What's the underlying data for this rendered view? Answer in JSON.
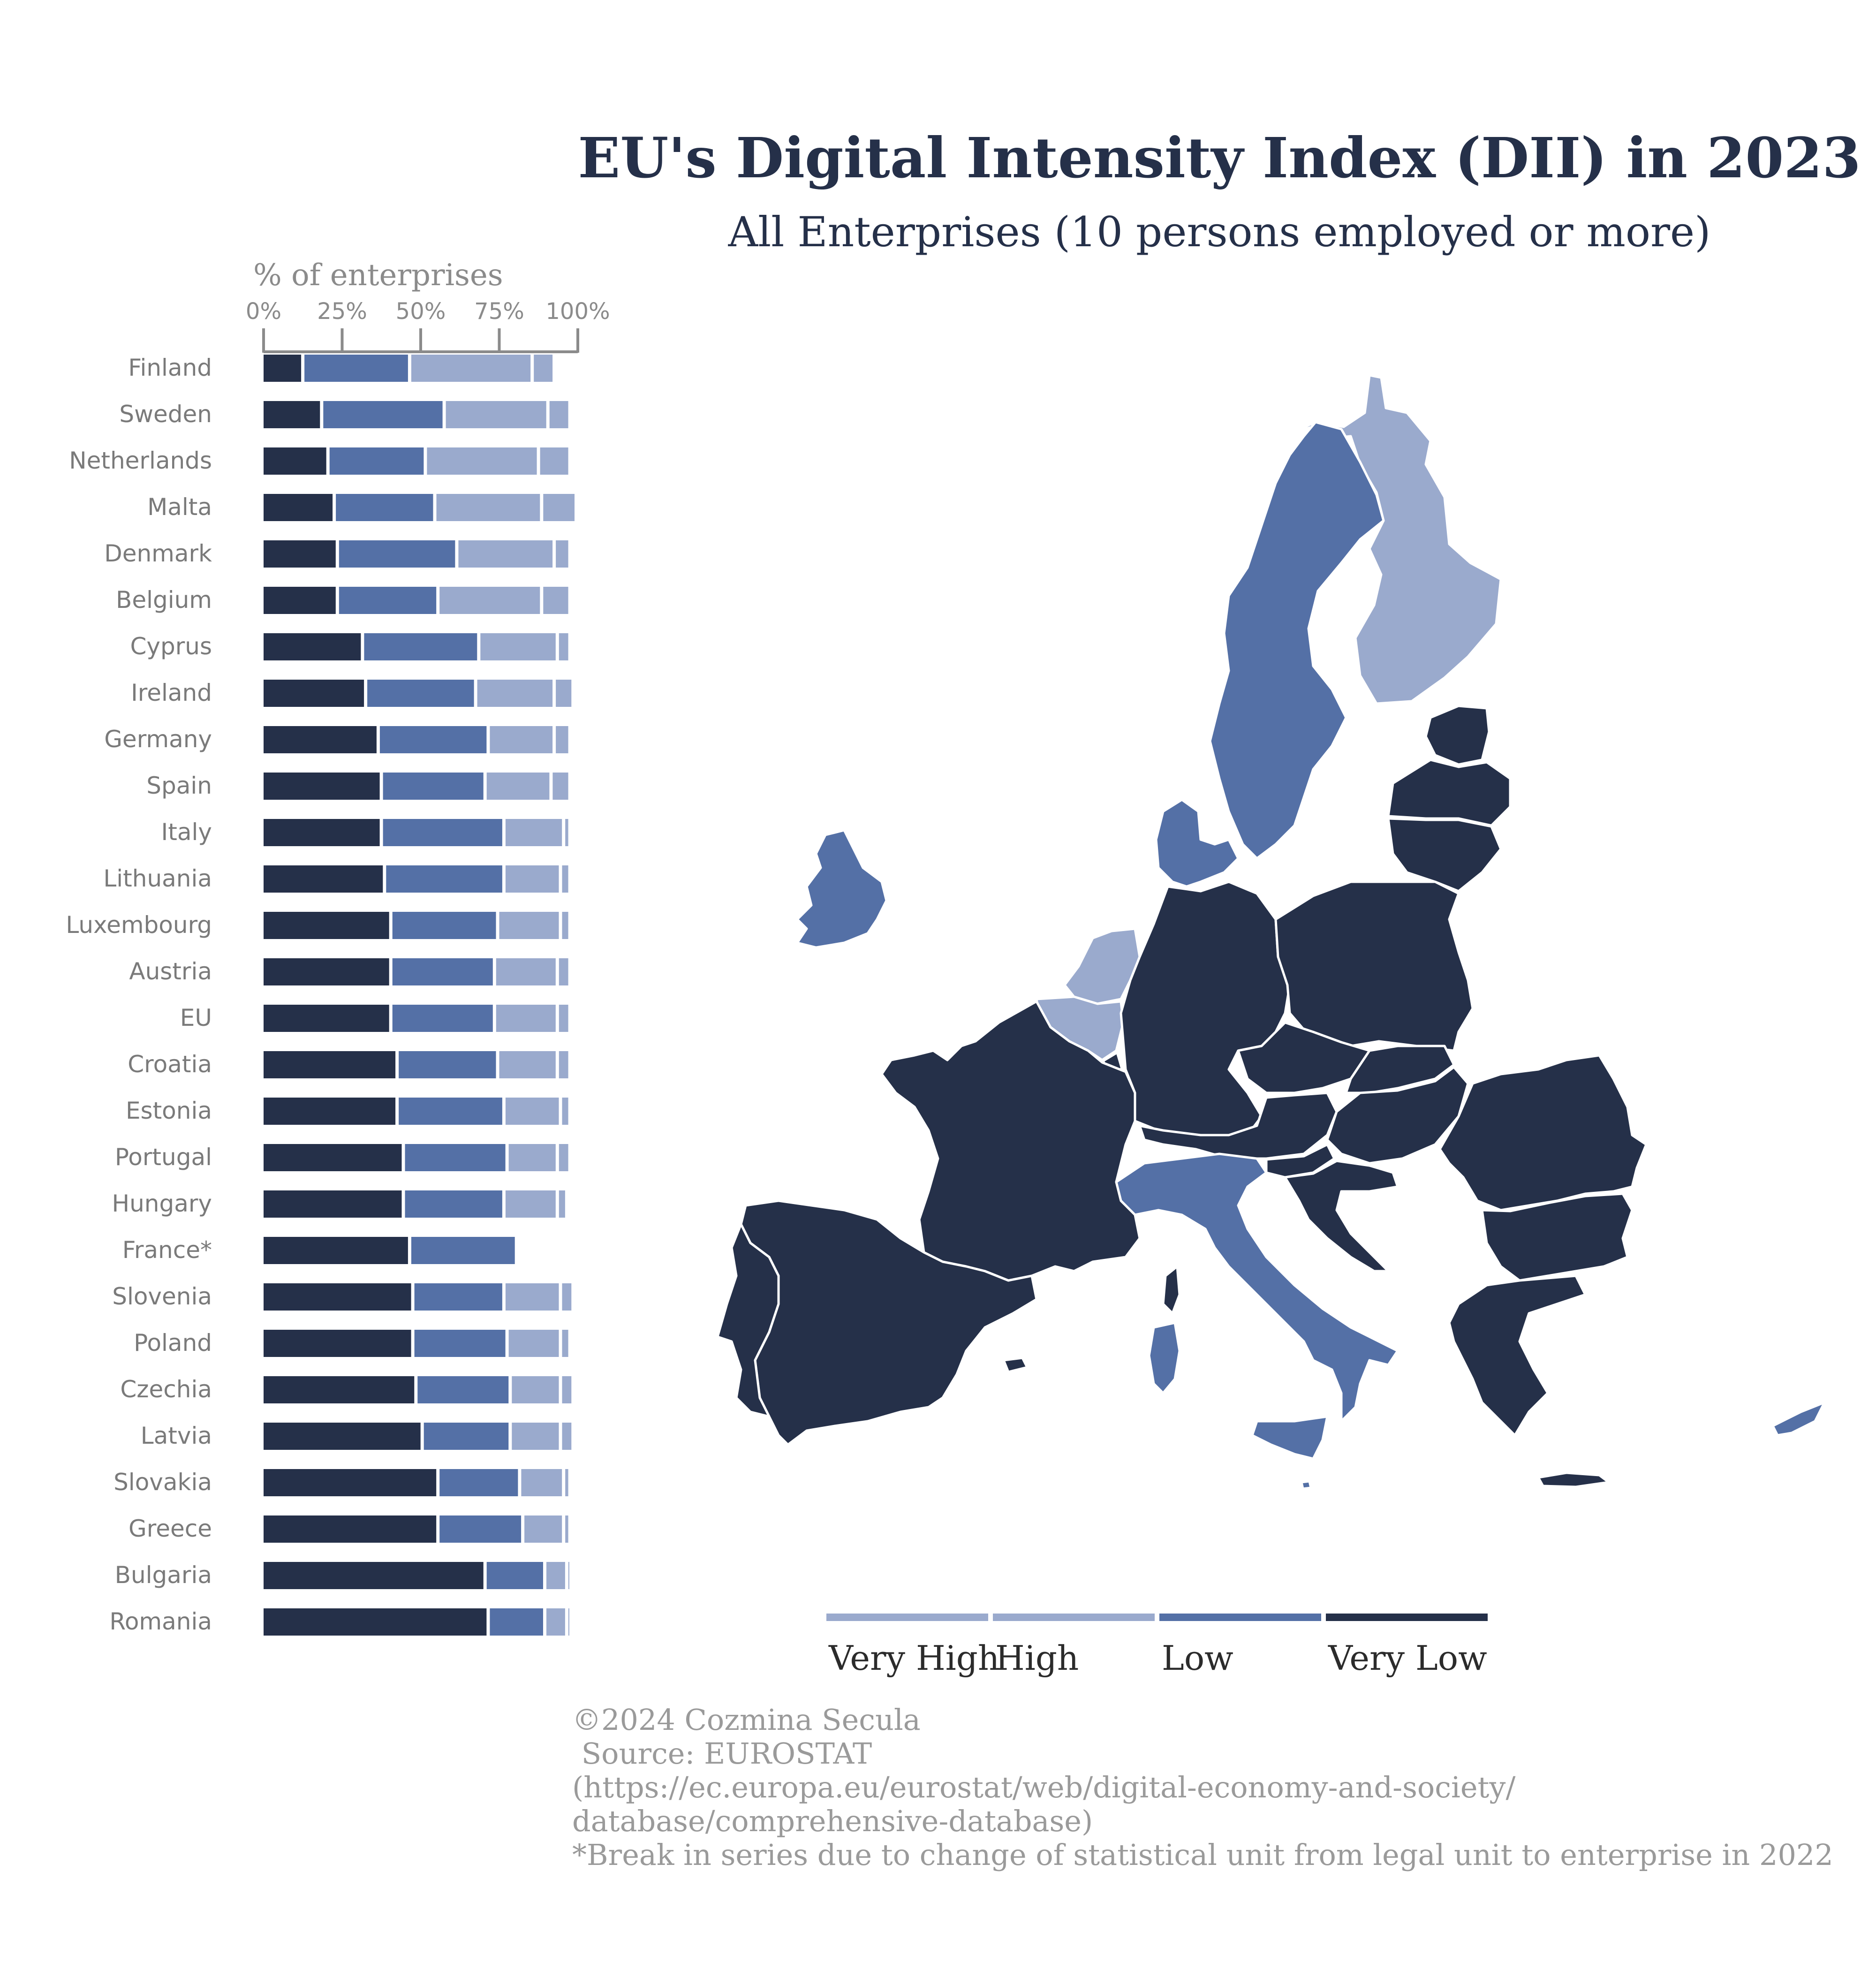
{
  "chart_data": {
    "type": "bar",
    "orientation": "horizontal",
    "stacked": true,
    "title": "EU's Digital Intensity Index (DII) in 2023",
    "subtitle": "All Enterprises (10 persons employed or more)",
    "xlabel": "% of enterprises",
    "xlim": [
      0,
      100
    ],
    "xticks": [
      "0%",
      "25%",
      "50%",
      "75%",
      "100%"
    ],
    "tick_values": [
      0,
      25,
      50,
      75,
      100
    ],
    "categories": [
      "Finland",
      "Sweden",
      "Netherlands",
      "Malta",
      "Denmark",
      "Belgium",
      "Cyprus",
      "Ireland",
      "Germany",
      "Spain",
      "Italy",
      "Lithuania",
      "Luxembourg",
      "Austria",
      "EU",
      "Croatia",
      "Estonia",
      "Portugal",
      "Hungary",
      "France*",
      "Slovenia",
      "Poland",
      "Czechia",
      "Latvia",
      "Slovakia",
      "Greece",
      "Bulgaria",
      "Romania"
    ],
    "series": [
      {
        "name": "Very Low",
        "color": "#253049",
        "values": [
          13,
          19,
          21,
          23,
          24,
          24,
          32,
          33,
          37,
          38,
          38,
          39,
          41,
          41,
          41,
          43,
          43,
          45,
          45,
          47,
          48,
          48,
          49,
          51,
          56,
          56,
          71,
          72
        ]
      },
      {
        "name": "Low",
        "color": "#5470a6",
        "values": [
          34,
          39,
          31,
          32,
          38,
          32,
          37,
          35,
          35,
          33,
          39,
          38,
          34,
          33,
          33,
          32,
          34,
          33,
          32,
          34,
          29,
          30,
          30,
          28,
          26,
          27,
          19,
          18
        ]
      },
      {
        "name": "High",
        "color": "#9aaacd",
        "values": [
          39,
          33,
          36,
          34,
          31,
          33,
          25,
          25,
          21,
          21,
          19,
          18,
          20,
          20,
          20,
          19,
          18,
          16,
          17,
          0,
          18,
          17,
          16,
          16,
          14,
          13,
          7,
          7
        ]
      },
      {
        "name": "Very High",
        "color": "#9aaacd",
        "values": [
          7,
          7,
          10,
          11,
          5,
          9,
          4,
          6,
          5,
          6,
          2,
          3,
          3,
          4,
          4,
          4,
          3,
          4,
          3,
          0,
          4,
          3,
          4,
          4,
          2,
          2,
          1,
          1
        ]
      }
    ],
    "grid": false,
    "legend_placement": "bottom-right",
    "legend": [
      "Very High",
      "High",
      "Low",
      "Very Low"
    ]
  },
  "map": {
    "type": "choropleth",
    "levels": {
      "very_high": [
        "Finland",
        "Netherlands",
        "Belgium"
      ],
      "low": [
        "Sweden",
        "Denmark",
        "Ireland",
        "Italy",
        "Malta",
        "Cyprus"
      ],
      "very_low": [
        "France",
        "Spain",
        "Portugal",
        "Germany",
        "Poland",
        "Czechia",
        "Austria",
        "Slovakia",
        "Hungary",
        "Slovenia",
        "Croatia",
        "Romania",
        "Bulgaria",
        "Greece",
        "Estonia",
        "Latvia",
        "Lithuania",
        "Luxembourg"
      ]
    }
  },
  "colors": {
    "very_low": "#253049",
    "low": "#5470a6",
    "high": "#9aaacd",
    "very_high": "#9aaacd"
  },
  "footer": {
    "line1": "©2024 Cozmina Secula",
    "line2": " Source: EUROSTAT",
    "line3": "(https://ec.europa.eu/eurostat/web/digital-economy-and-society/",
    "line4": "database/comprehensive-database)",
    "line5": "*Break in series due to change of statistical unit from legal unit to enterprise in 2022"
  }
}
